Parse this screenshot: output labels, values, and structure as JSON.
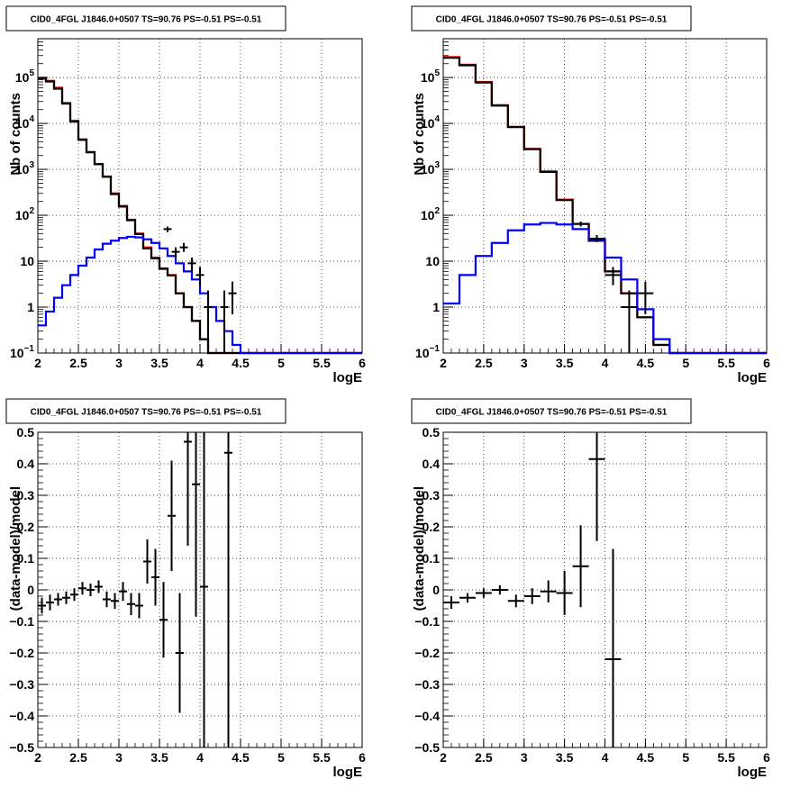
{
  "chart_data": [
    {
      "type": "histogram",
      "title": "CID0_4FGL J1846.0+0507 TS=90.76 PS=-0.51 PS=-0.51",
      "xlabel": "logE",
      "ylabel": "Nb of counts",
      "xlim": [
        2,
        6
      ],
      "ylim": [
        0.1,
        700000
      ],
      "yscale": "log",
      "grid": true,
      "xticks": [
        "2",
        "2.5",
        "3",
        "3.5",
        "4",
        "4.5",
        "5",
        "5.5",
        "6"
      ],
      "yticks": [
        {
          "v": 0.1,
          "b": "10",
          "e": "−1"
        },
        {
          "v": 1,
          "b": "1",
          "e": ""
        },
        {
          "v": 10,
          "b": "10",
          "e": ""
        },
        {
          "v": 100,
          "b": "10",
          "e": "2"
        },
        {
          "v": 1000,
          "b": "10",
          "e": "3"
        },
        {
          "v": 10000,
          "b": "10",
          "e": "4"
        },
        {
          "v": 100000,
          "b": "10",
          "e": "5"
        }
      ],
      "series": [
        {
          "color": "#ff0000",
          "bins": [
            2.0,
            2.1,
            2.2,
            2.3,
            2.4,
            2.5,
            2.6,
            2.7,
            2.8,
            2.9,
            3.0,
            3.1,
            3.2,
            3.3,
            3.4,
            3.5,
            3.6,
            3.7,
            3.8,
            3.9,
            4.0,
            4.1,
            4.2,
            4.3,
            4.4,
            4.5,
            4.6,
            4.7,
            4.8,
            4.9,
            5.0,
            5.1,
            5.2,
            5.3,
            5.4,
            5.5,
            5.6,
            5.7,
            5.8,
            5.9,
            6.0
          ],
          "values": [
            100000,
            85000,
            60000,
            28000,
            11500,
            4500,
            2400,
            1300,
            700,
            300,
            160,
            80,
            40,
            20,
            12,
            7,
            5,
            2,
            1,
            0.5,
            0.2,
            0.1,
            0.1,
            0.1,
            0.1,
            0.1,
            0.1,
            0.1,
            0.1,
            0.1,
            0.1,
            0.1,
            0.1,
            0.1,
            0.1,
            0.1,
            0.1,
            0.1,
            0.1,
            0.1
          ]
        },
        {
          "color": "#000000",
          "bins": [
            2.0,
            2.1,
            2.2,
            2.3,
            2.4,
            2.5,
            2.6,
            2.7,
            2.8,
            2.9,
            3.0,
            3.1,
            3.2,
            3.3,
            3.4,
            3.5,
            3.6,
            3.7,
            3.8,
            3.9,
            4.0,
            4.1,
            4.2,
            4.3,
            4.4,
            4.5,
            4.6,
            4.7,
            4.8,
            4.9,
            5.0,
            5.1,
            5.2,
            5.3,
            5.4,
            5.5,
            5.6,
            5.7,
            5.8,
            5.9,
            6.0
          ],
          "values": [
            95000,
            82000,
            57000,
            27000,
            11000,
            4400,
            2350,
            1300,
            690,
            290,
            155,
            78,
            39,
            19,
            11.5,
            6.8,
            4.9,
            2,
            1,
            0.5,
            0.2,
            0.1,
            0.1,
            0.1,
            0.1,
            0.1,
            0.1,
            0.1,
            0.1,
            0.1,
            0.1,
            0.1,
            0.1,
            0.1,
            0.1,
            0.1,
            0.1,
            0.1,
            0.1,
            0.1
          ]
        },
        {
          "color": "#0000ff",
          "bins": [
            2.0,
            2.1,
            2.2,
            2.3,
            2.4,
            2.5,
            2.6,
            2.7,
            2.8,
            2.9,
            3.0,
            3.1,
            3.2,
            3.3,
            3.4,
            3.5,
            3.6,
            3.7,
            3.8,
            3.9,
            4.0,
            4.1,
            4.2,
            4.3,
            4.4,
            4.5,
            4.6,
            4.7,
            4.8,
            4.9,
            5.0,
            5.1,
            5.2,
            5.3,
            5.4,
            5.5,
            5.6,
            5.7,
            5.8,
            5.9,
            6.0
          ],
          "values": [
            0.4,
            0.8,
            1.6,
            3,
            5,
            8,
            12,
            18,
            24,
            28,
            32,
            34,
            33,
            30,
            25,
            19,
            13,
            9,
            6,
            4,
            2,
            1,
            0.5,
            0.3,
            0.15,
            0.1,
            0.1,
            0.1,
            0.1,
            0.1,
            0.1,
            0.1,
            0.1,
            0.1,
            0.1,
            0.1,
            0.1,
            0.1,
            0.1,
            0.1
          ]
        }
      ],
      "points": [
        {
          "x": 3.6,
          "y": 50,
          "xerr": 0.05,
          "ylo": 43,
          "yhi": 57
        },
        {
          "x": 3.7,
          "y": 16,
          "xerr": 0.05,
          "ylo": 12,
          "yhi": 20
        },
        {
          "x": 3.8,
          "y": 20,
          "xerr": 0.05,
          "ylo": 16,
          "yhi": 25
        },
        {
          "x": 3.9,
          "y": 9,
          "xerr": 0.05,
          "ylo": 6,
          "yhi": 12
        },
        {
          "x": 4.0,
          "y": 5,
          "xerr": 0.05,
          "ylo": 3,
          "yhi": 7.5
        },
        {
          "x": 4.1,
          "y": 1,
          "xerr": 0.05,
          "ylo": 0.1,
          "yhi": 2.3
        },
        {
          "x": 4.3,
          "y": 1,
          "xerr": 0.05,
          "ylo": 0.1,
          "yhi": 2.3
        },
        {
          "x": 4.4,
          "y": 2,
          "xerr": 0.05,
          "ylo": 0.7,
          "yhi": 3.6
        }
      ]
    },
    {
      "type": "histogram",
      "title": "CID0_4FGL J1846.0+0507 TS=90.76 PS=-0.51 PS=-0.51",
      "xlabel": "logE",
      "ylabel": "Nb of counts",
      "xlim": [
        2,
        6
      ],
      "ylim": [
        0.1,
        700000
      ],
      "yscale": "log",
      "grid": true,
      "xticks": [
        "2",
        "2.5",
        "3",
        "3.5",
        "4",
        "4.5",
        "5",
        "5.5",
        "6"
      ],
      "yticks": [
        {
          "v": 0.1,
          "b": "10",
          "e": "−1"
        },
        {
          "v": 1,
          "b": "1",
          "e": ""
        },
        {
          "v": 10,
          "b": "10",
          "e": ""
        },
        {
          "v": 100,
          "b": "10",
          "e": "2"
        },
        {
          "v": 1000,
          "b": "10",
          "e": "3"
        },
        {
          "v": 10000,
          "b": "10",
          "e": "4"
        },
        {
          "v": 100000,
          "b": "10",
          "e": "5"
        }
      ],
      "series": [
        {
          "color": "#ff0000",
          "bins": [
            2.0,
            2.2,
            2.4,
            2.6,
            2.8,
            3.0,
            3.2,
            3.4,
            3.6,
            3.8,
            4.0,
            4.2,
            4.4,
            4.6,
            4.8,
            5.0,
            5.2,
            5.4,
            5.6,
            5.8,
            6.0
          ],
          "values": [
            280000,
            190000,
            80000,
            25000,
            8500,
            2800,
            900,
            220,
            65,
            28,
            6,
            2,
            0.6,
            0.15,
            0.1,
            0.1,
            0.1,
            0.1,
            0.1,
            0.1
          ]
        },
        {
          "color": "#000000",
          "bins": [
            2.0,
            2.2,
            2.4,
            2.6,
            2.8,
            3.0,
            3.2,
            3.4,
            3.6,
            3.8,
            4.0,
            4.2,
            4.4,
            4.6,
            4.8,
            5.0,
            5.2,
            5.4,
            5.6,
            5.8,
            6.0
          ],
          "values": [
            270000,
            185000,
            78000,
            24500,
            8300,
            2750,
            880,
            215,
            65,
            28,
            6,
            2,
            0.6,
            0.15,
            0.1,
            0.1,
            0.1,
            0.1,
            0.1,
            0.1
          ]
        },
        {
          "color": "#0000ff",
          "bins": [
            2.0,
            2.2,
            2.4,
            2.6,
            2.8,
            3.0,
            3.2,
            3.4,
            3.6,
            3.8,
            4.0,
            4.2,
            4.4,
            4.6,
            4.8,
            5.0,
            5.2,
            5.4,
            5.6,
            5.8,
            6.0
          ],
          "values": [
            1.2,
            5,
            13,
            25,
            47,
            63,
            68,
            63,
            50,
            30,
            12,
            4,
            0.9,
            0.2,
            0.1,
            0.1,
            0.1,
            0.1,
            0.1,
            0.1
          ]
        }
      ],
      "points": [
        {
          "x": 3.7,
          "y": 65,
          "xerr": 0.1,
          "ylo": 57,
          "yhi": 73
        },
        {
          "x": 3.9,
          "y": 31,
          "xerr": 0.1,
          "ylo": 26,
          "yhi": 37
        },
        {
          "x": 4.1,
          "y": 5,
          "xerr": 0.1,
          "ylo": 3,
          "yhi": 7.5
        },
        {
          "x": 4.3,
          "y": 1,
          "xerr": 0.1,
          "ylo": 0.1,
          "yhi": 2.3
        },
        {
          "x": 4.5,
          "y": 2,
          "xerr": 0.1,
          "ylo": 0.7,
          "yhi": 3.6
        }
      ]
    },
    {
      "type": "scatter",
      "title": "CID0_4FGL J1846.0+0507 TS=90.76 PS=-0.51 PS=-0.51",
      "xlabel": "logE",
      "ylabel": "(data-model)/model",
      "xlim": [
        2,
        6
      ],
      "ylim": [
        -0.5,
        0.5
      ],
      "grid": true,
      "xticks": [
        "2",
        "2.5",
        "3",
        "3.5",
        "4",
        "4.5",
        "5",
        "5.5",
        "6"
      ],
      "yticks": [
        "−0.5",
        "−0.4",
        "−0.3",
        "−0.2",
        "−0.1",
        "0",
        "0.1",
        "0.2",
        "0.3",
        "0.4",
        "0.5"
      ],
      "points": [
        {
          "x": 2.05,
          "y": -0.05,
          "xerr": 0.05,
          "yerr": 0.025
        },
        {
          "x": 2.15,
          "y": -0.04,
          "xerr": 0.05,
          "yerr": 0.025
        },
        {
          "x": 2.25,
          "y": -0.03,
          "xerr": 0.05,
          "yerr": 0.02
        },
        {
          "x": 2.35,
          "y": -0.025,
          "xerr": 0.05,
          "yerr": 0.02
        },
        {
          "x": 2.45,
          "y": -0.015,
          "xerr": 0.05,
          "yerr": 0.02
        },
        {
          "x": 2.55,
          "y": 0.005,
          "xerr": 0.05,
          "yerr": 0.02
        },
        {
          "x": 2.65,
          "y": 0.0,
          "xerr": 0.05,
          "yerr": 0.02
        },
        {
          "x": 2.75,
          "y": 0.01,
          "xerr": 0.05,
          "yerr": 0.02
        },
        {
          "x": 2.85,
          "y": -0.03,
          "xerr": 0.05,
          "yerr": 0.025
        },
        {
          "x": 2.95,
          "y": -0.035,
          "xerr": 0.05,
          "yerr": 0.025
        },
        {
          "x": 3.05,
          "y": -0.005,
          "xerr": 0.05,
          "yerr": 0.03
        },
        {
          "x": 3.15,
          "y": -0.045,
          "xerr": 0.05,
          "yerr": 0.035
        },
        {
          "x": 3.25,
          "y": -0.05,
          "xerr": 0.05,
          "yerr": 0.04
        },
        {
          "x": 3.35,
          "y": 0.09,
          "xerr": 0.05,
          "yerr": 0.07
        },
        {
          "x": 3.45,
          "y": 0.04,
          "xerr": 0.05,
          "yerr": 0.09
        },
        {
          "x": 3.55,
          "y": -0.095,
          "xerr": 0.05,
          "yerr": 0.12
        },
        {
          "x": 3.65,
          "y": 0.235,
          "xerr": 0.05,
          "yerr": 0.175
        },
        {
          "x": 3.75,
          "y": -0.2,
          "xerr": 0.05,
          "yerr": 0.19
        },
        {
          "x": 3.85,
          "y": 0.47,
          "xerr": 0.05,
          "yerr": 0.33
        },
        {
          "x": 3.95,
          "y": 0.335,
          "xerr": 0.05,
          "yerr": 0.42
        },
        {
          "x": 4.05,
          "y": 0.01,
          "xerr": 0.05,
          "yerr": 0.6
        },
        {
          "x": 4.35,
          "y": 0.435,
          "xerr": 0.05,
          "yerr": 1.0
        }
      ]
    },
    {
      "type": "scatter",
      "title": "CID0_4FGL J1846.0+0507 TS=90.76 PS=-0.51 PS=-0.51",
      "xlabel": "logE",
      "ylabel": "(data-model)/model",
      "xlim": [
        2,
        6
      ],
      "ylim": [
        -0.5,
        0.5
      ],
      "grid": true,
      "xticks": [
        "2",
        "2.5",
        "3",
        "3.5",
        "4",
        "4.5",
        "5",
        "5.5",
        "6"
      ],
      "yticks": [
        "−0.5",
        "−0.4",
        "−0.3",
        "−0.2",
        "−0.1",
        "0",
        "0.1",
        "0.2",
        "0.3",
        "0.4",
        "0.5"
      ],
      "points": [
        {
          "x": 2.1,
          "y": -0.04,
          "xerr": 0.1,
          "yerr": 0.02
        },
        {
          "x": 2.3,
          "y": -0.025,
          "xerr": 0.1,
          "yerr": 0.015
        },
        {
          "x": 2.5,
          "y": -0.01,
          "xerr": 0.1,
          "yerr": 0.015
        },
        {
          "x": 2.7,
          "y": 0.0,
          "xerr": 0.1,
          "yerr": 0.015
        },
        {
          "x": 2.9,
          "y": -0.035,
          "xerr": 0.1,
          "yerr": 0.02
        },
        {
          "x": 3.1,
          "y": -0.02,
          "xerr": 0.1,
          "yerr": 0.025
        },
        {
          "x": 3.3,
          "y": -0.005,
          "xerr": 0.1,
          "yerr": 0.035
        },
        {
          "x": 3.5,
          "y": -0.01,
          "xerr": 0.1,
          "yerr": 0.07
        },
        {
          "x": 3.7,
          "y": 0.075,
          "xerr": 0.1,
          "yerr": 0.13
        },
        {
          "x": 3.9,
          "y": 0.415,
          "xerr": 0.1,
          "yerr": 0.26
        },
        {
          "x": 4.1,
          "y": -0.22,
          "xerr": 0.1,
          "yerr": 0.35
        }
      ]
    }
  ]
}
